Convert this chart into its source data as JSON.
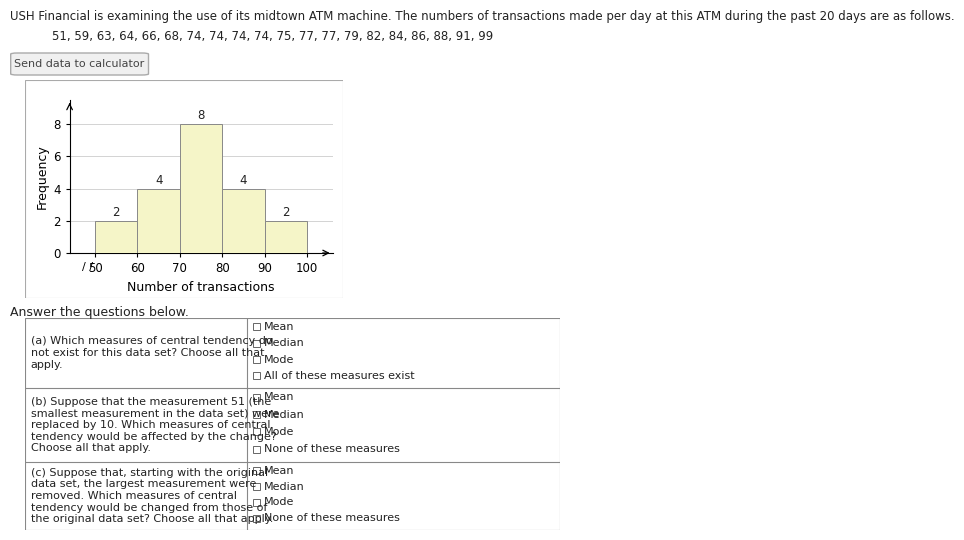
{
  "title_line1": "USH Financial is examining the use of its midtown ATM machine. The numbers of transactions made per day at this ATM during the past 20 days are as follows.",
  "title_line2": "51, 59, 63, 64, 66, 68, 74, 74, 74, 74, 75, 77, 77, 79, 82, 84, 86, 88, 91, 99",
  "button_label": "Send data to calculator",
  "ylabel": "Frequency",
  "xlabel": "Number of transactions",
  "bin_edges": [
    50,
    60,
    70,
    80,
    90,
    100
  ],
  "frequencies": [
    2,
    4,
    8,
    4,
    2
  ],
  "bar_color": "#f5f5c8",
  "bar_edgecolor": "#888888",
  "yticks": [
    0,
    2,
    4,
    6,
    8
  ],
  "xticks": [
    50,
    60,
    70,
    80,
    90,
    100
  ],
  "ylim": [
    0,
    9.5
  ],
  "xlim": [
    44,
    106
  ],
  "answer_the_questions_text": "Answer the questions below.",
  "questions": [
    {
      "text": "(a) Which measures of central tendency do\nnot exist for this data set? Choose all that\napply.",
      "options": [
        "Mean",
        "Median",
        "Mode",
        "All of these measures exist"
      ]
    },
    {
      "text": "(b) Suppose that the measurement 51 (the\nsmallest measurement in the data set) were\nreplaced by 10. Which measures of central\ntendency would be affected by the change?\nChoose all that apply.",
      "options": [
        "Mean",
        "Median",
        "Mode",
        "None of these measures"
      ]
    },
    {
      "text": "(c) Suppose that, starting with the original\ndata set, the largest measurement were\nremoved. Which measures of central\ntendency would be changed from those of\nthe original data set? Choose all that apply.",
      "options": [
        "Mean",
        "Median",
        "Mode",
        "None of these measures"
      ]
    }
  ],
  "background_color": "#ffffff",
  "grid_color": "#cccccc",
  "text_color": "#222222",
  "title_fontsize": 8.5,
  "label_fontsize": 8.5,
  "tick_fontsize": 8.5,
  "table_fontsize": 8.0
}
